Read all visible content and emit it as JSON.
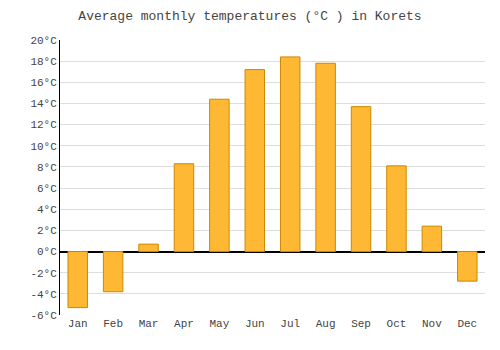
{
  "chart_data": {
    "type": "bar",
    "title": "Average monthly temperatures (°C ) in Korets",
    "categories": [
      "Jan",
      "Feb",
      "Mar",
      "Apr",
      "May",
      "Jun",
      "Jul",
      "Aug",
      "Sep",
      "Oct",
      "Nov",
      "Dec"
    ],
    "values": [
      -5.3,
      -3.8,
      0.7,
      8.3,
      14.4,
      17.2,
      18.4,
      17.8,
      13.7,
      8.1,
      2.4,
      -2.8
    ],
    "color": "#FFB833",
    "ylim": [
      -6,
      20
    ],
    "yticks": [
      {
        "value": -6,
        "label": "-6°C"
      },
      {
        "value": -4,
        "label": "-4°C"
      },
      {
        "value": -2,
        "label": "-2°C"
      },
      {
        "value": 0,
        "label": "0°C"
      },
      {
        "value": 2,
        "label": "2°C"
      },
      {
        "value": 4,
        "label": "4°C"
      },
      {
        "value": 6,
        "label": "6°C"
      },
      {
        "value": 8,
        "label": "8°C"
      },
      {
        "value": 10,
        "label": "10°C"
      },
      {
        "value": 12,
        "label": "12°C"
      },
      {
        "value": 14,
        "label": "14°C"
      },
      {
        "value": 16,
        "label": "16°C"
      },
      {
        "value": 18,
        "label": "18°C"
      },
      {
        "value": 20,
        "label": "20°C"
      }
    ],
    "grid": true
  }
}
